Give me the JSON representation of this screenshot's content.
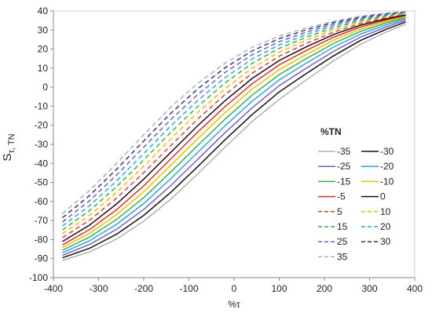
{
  "chart_data": {
    "type": "line",
    "xlabel": "%τ",
    "ylabel_main": "S",
    "ylabel_sub": "τ, TN",
    "xlim": [
      -400,
      400
    ],
    "ylim": [
      -100,
      40
    ],
    "xticks": [
      -400,
      -300,
      -200,
      -100,
      0,
      100,
      200,
      300,
      400
    ],
    "yticks": [
      -100,
      -90,
      -80,
      -70,
      -60,
      -50,
      -40,
      -30,
      -20,
      -10,
      0,
      10,
      20,
      30,
      40
    ],
    "grid": false,
    "legend_title": "%TN",
    "legend_position": "right",
    "x": [
      -380,
      -320,
      -260,
      -200,
      -140,
      -80,
      -20,
      40,
      100,
      160,
      220,
      280,
      340,
      380
    ],
    "series": [
      {
        "name": "-35",
        "color": "#b0b0b0",
        "dash": "solid",
        "values": [
          -91.0,
          -86.5,
          -79.7,
          -70.4,
          -58.8,
          -45.4,
          -31.5,
          -18.0,
          -6.4,
          3.9,
          13.8,
          22.5,
          29.3,
          33.1
        ]
      },
      {
        "name": "-30",
        "color": "#111111",
        "dash": "solid",
        "values": [
          -89.6,
          -84.6,
          -77.2,
          -67.3,
          -55.2,
          -41.6,
          -27.6,
          -14.4,
          -2.5,
          7.2,
          16.4,
          24.5,
          30.7,
          34.2
        ]
      },
      {
        "name": "-25",
        "color": "#7b5cc4",
        "dash": "solid",
        "values": [
          -88.3,
          -82.6,
          -74.6,
          -64.2,
          -51.6,
          -37.8,
          -23.9,
          -10.8,
          0.8,
          10.0,
          18.8,
          26.3,
          31.9,
          35.1
        ]
      },
      {
        "name": "-20",
        "color": "#2aa6d9",
        "dash": "solid",
        "values": [
          -86.9,
          -80.6,
          -72.0,
          -61.1,
          -48.0,
          -34.1,
          -20.3,
          -7.4,
          3.8,
          12.6,
          21.0,
          27.9,
          33.0,
          35.9
        ]
      },
      {
        "name": "-15",
        "color": "#3caa4e",
        "dash": "solid",
        "values": [
          -85.6,
          -78.7,
          -69.4,
          -58.0,
          -44.5,
          -30.5,
          -16.8,
          -4.2,
          6.6,
          15.0,
          22.9,
          29.3,
          34.0,
          36.5
        ]
      },
      {
        "name": "-10",
        "color": "#e8c000",
        "dash": "solid",
        "values": [
          -84.2,
          -76.8,
          -66.9,
          -54.9,
          -41.0,
          -27.0,
          -13.4,
          -1.1,
          9.2,
          17.2,
          24.6,
          30.5,
          34.8,
          37.1
        ]
      },
      {
        "name": "-5",
        "color": "#d9312b",
        "dash": "solid",
        "values": [
          -82.8,
          -74.8,
          -64.3,
          -51.8,
          -37.6,
          -23.5,
          -10.2,
          1.8,
          11.7,
          19.3,
          26.2,
          31.6,
          35.5,
          37.6
        ]
      },
      {
        "name": "0",
        "color": "#111111",
        "dash": "solid",
        "values": [
          -81.0,
          -72.4,
          -61.3,
          -48.3,
          -34.2,
          -20.1,
          -7.1,
          4.6,
          14.0,
          21.2,
          27.6,
          32.6,
          36.1,
          38.0
        ]
      },
      {
        "name": "5",
        "color": "#e53a35",
        "dash": "dashed",
        "values": [
          -79.0,
          -69.8,
          -58.2,
          -44.9,
          -30.6,
          -16.6,
          -3.9,
          7.3,
          16.3,
          23.0,
          28.9,
          33.5,
          36.7,
          38.3
        ]
      },
      {
        "name": "10",
        "color": "#e8c000",
        "dash": "dashed",
        "values": [
          -77.0,
          -67.3,
          -55.2,
          -41.5,
          -27.1,
          -13.2,
          -0.8,
          10.0,
          18.4,
          24.7,
          30.1,
          34.3,
          37.2,
          38.6
        ]
      },
      {
        "name": "15",
        "color": "#3caa4e",
        "dash": "dashed",
        "values": [
          -75.0,
          -64.8,
          -52.2,
          -38.2,
          -23.7,
          -10.0,
          2.2,
          12.5,
          20.4,
          26.2,
          31.2,
          35.0,
          37.6,
          38.9
        ]
      },
      {
        "name": "20",
        "color": "#2aa6d9",
        "dash": "dashed",
        "values": [
          -72.9,
          -62.2,
          -49.2,
          -34.8,
          -20.3,
          -6.9,
          5.0,
          14.8,
          22.2,
          27.6,
          32.2,
          35.7,
          38.0,
          39.1
        ]
      },
      {
        "name": "25",
        "color": "#7b5cc4",
        "dash": "dashed",
        "values": [
          -70.8,
          -59.6,
          -46.1,
          -31.5,
          -17.0,
          -3.8,
          7.7,
          17.0,
          23.9,
          28.9,
          33.1,
          36.3,
          38.4,
          39.3
        ]
      },
      {
        "name": "30",
        "color": "#2b3a6e",
        "dash": "dashed",
        "values": [
          -68.6,
          -56.9,
          -43.1,
          -28.2,
          -13.7,
          -0.8,
          10.2,
          19.0,
          25.5,
          30.1,
          33.9,
          36.8,
          38.7,
          39.5
        ]
      },
      {
        "name": "35",
        "color": "#b0b0b0",
        "dash": "dashed",
        "values": [
          -66.4,
          -54.2,
          -40.0,
          -25.0,
          -10.5,
          2.1,
          12.6,
          20.9,
          26.9,
          31.1,
          34.6,
          37.3,
          39.0,
          39.7
        ]
      }
    ]
  }
}
